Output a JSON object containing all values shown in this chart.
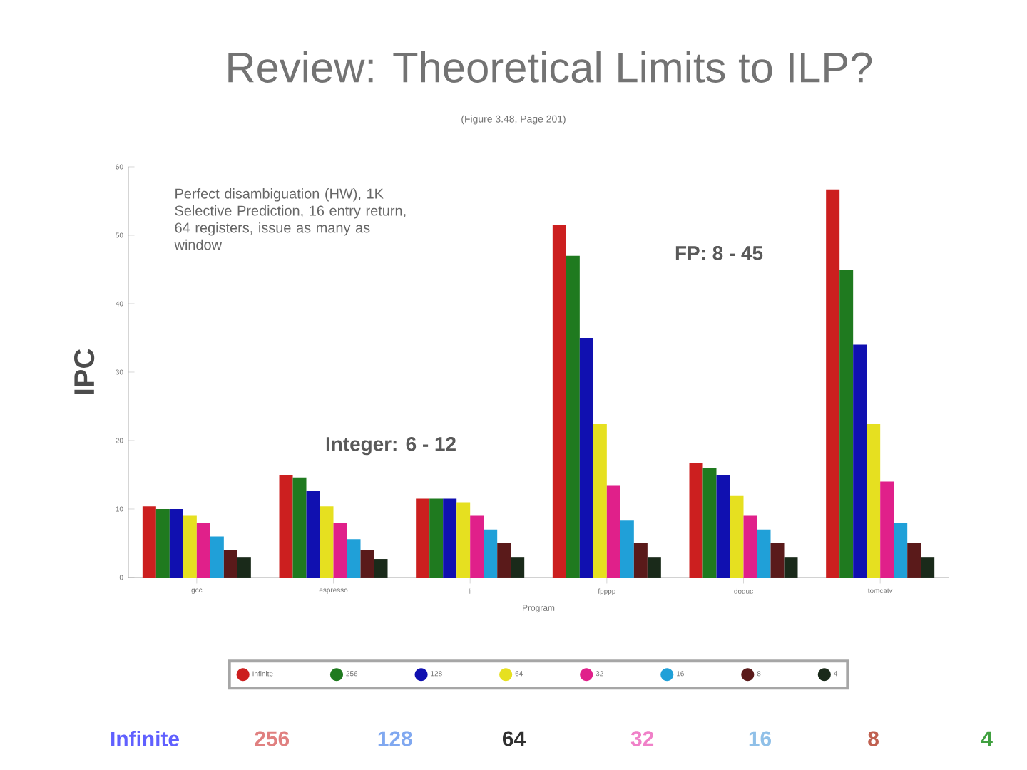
{
  "chart_data": {
    "type": "bar",
    "title": "Review: Theoretical Limits to ILP?",
    "subtitle": "(Figure 3.48, Page 201)",
    "xlabel": "Program",
    "ylabel": "IPC",
    "categories": [
      "gcc",
      "espresso",
      "li",
      "fpppp",
      "doduc",
      "tomcatv"
    ],
    "series": [
      {
        "name": "Infinite",
        "color": "#cc1f1f",
        "values": [
          10.4,
          15,
          11.5,
          51.5,
          16.7,
          56.7
        ]
      },
      {
        "name": "256",
        "color": "#1f7a1f",
        "values": [
          10,
          14.6,
          11.5,
          47,
          16,
          45
        ]
      },
      {
        "name": "128",
        "color": "#1010b0",
        "values": [
          10,
          12.7,
          11.5,
          35,
          15,
          34
        ]
      },
      {
        "name": "64",
        "color": "#e6e020",
        "values": [
          9,
          10.4,
          11,
          22.5,
          12,
          22.5
        ]
      },
      {
        "name": "32",
        "color": "#e0208a",
        "values": [
          8,
          8,
          9,
          13.5,
          9,
          14
        ]
      },
      {
        "name": "16",
        "color": "#20a0d8",
        "values": [
          6,
          5.6,
          7,
          8.3,
          7,
          8
        ]
      },
      {
        "name": "8",
        "color": "#5a1a1a",
        "values": [
          4,
          4,
          5,
          5,
          5,
          5
        ]
      },
      {
        "name": "4",
        "color": "#1a2a1a",
        "values": [
          3,
          2.7,
          3,
          3,
          3,
          3
        ]
      }
    ],
    "ylim": [
      0,
      60
    ],
    "yticks": [
      0,
      10,
      20,
      30,
      40,
      50,
      60
    ],
    "legend": "bottom",
    "annotations": [
      "Perfect disambiguation (HW), 1K Selective Prediction, 16 entry return, 64 registers, issue as many as window",
      "Integer: 6 - 12",
      "FP: 8 - 45",
      "Infinite",
      "256",
      "128",
      "64",
      "32",
      "16",
      "8",
      "4"
    ]
  }
}
